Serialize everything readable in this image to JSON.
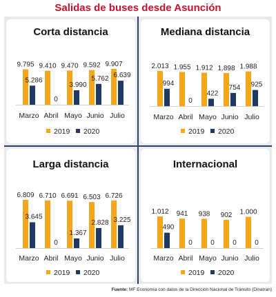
{
  "title": "Salidas de buses desde Asunción",
  "source_label": "Fuente:",
  "source_text": "MF Economía con datos de la Dirección Nacional de Tránsito (Dinatran)",
  "colors": {
    "title": "#c8102e",
    "series_2019": "#f4a61d",
    "series_2020": "#1f3864",
    "divider": "#2f3f6b"
  },
  "chart_data": [
    {
      "type": "bar",
      "title": "Corta distancia",
      "categories": [
        "Marzo",
        "Abril",
        "Mayo",
        "Junio",
        "Julio"
      ],
      "series": [
        {
          "name": "2019",
          "values": [
            9795,
            9410,
            9470,
            9592,
            9907
          ],
          "labels": [
            "9.795",
            "9.410",
            "9.470",
            "9.592",
            "9.907"
          ]
        },
        {
          "name": "2020",
          "values": [
            5286,
            0,
            3990,
            5762,
            6639
          ],
          "labels": [
            "5.286",
            "0",
            "3.990",
            "5.762",
            "6.639"
          ]
        }
      ]
    },
    {
      "type": "bar",
      "title": "Mediana distancia",
      "categories": [
        "Marzo",
        "Abril",
        "Mayo",
        "Junio",
        "Julio"
      ],
      "series": [
        {
          "name": "2019",
          "values": [
            2013,
            1955,
            1912,
            1898,
            1988
          ],
          "labels": [
            "2.013",
            "1.955",
            "1.912",
            "1.898",
            "1.988"
          ]
        },
        {
          "name": "2020",
          "values": [
            994,
            0,
            422,
            754,
            925
          ],
          "labels": [
            "994",
            "0",
            "422",
            "754",
            "925"
          ]
        }
      ]
    },
    {
      "type": "bar",
      "title": "Larga distancia",
      "categories": [
        "Marzo",
        "Abril",
        "Mayo",
        "Junio",
        "Julio"
      ],
      "series": [
        {
          "name": "2019",
          "values": [
            6809,
            6710,
            6691,
            6503,
            6726
          ],
          "labels": [
            "6.809",
            "6.710",
            "6.691",
            "6.503",
            "6.726"
          ]
        },
        {
          "name": "2020",
          "values": [
            3645,
            0,
            1367,
            2828,
            3225
          ],
          "labels": [
            "3.645",
            "0",
            "1.367",
            "2.828",
            "3.225"
          ]
        }
      ]
    },
    {
      "type": "bar",
      "title": "Internacional",
      "categories": [
        "Marzo",
        "Abril",
        "Mayo",
        "Junio",
        "Julio"
      ],
      "series": [
        {
          "name": "2019",
          "values": [
            1012,
            941,
            938,
            902,
            1000
          ],
          "labels": [
            "1.012",
            "941",
            "938",
            "902",
            "1.000"
          ]
        },
        {
          "name": "2020",
          "values": [
            490,
            0,
            0,
            0,
            0
          ],
          "labels": [
            "490",
            "0",
            "0",
            "0",
            "0"
          ]
        }
      ]
    }
  ]
}
